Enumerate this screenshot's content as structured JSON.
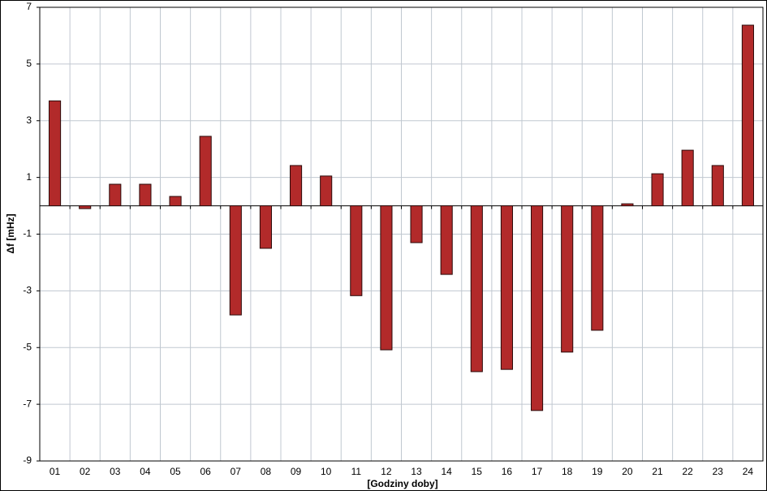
{
  "chart_data": {
    "type": "bar",
    "x_label": "[Godziny doby]",
    "y_label": "Δf [mHz]",
    "categories": [
      "01",
      "02",
      "03",
      "04",
      "05",
      "06",
      "07",
      "08",
      "09",
      "10",
      "11",
      "12",
      "13",
      "14",
      "15",
      "16",
      "17",
      "18",
      "19",
      "20",
      "21",
      "22",
      "23",
      "24"
    ],
    "values": [
      3.7,
      -0.1,
      0.76,
      0.76,
      0.33,
      2.45,
      -3.85,
      -1.5,
      1.42,
      1.05,
      -3.17,
      -5.08,
      -1.3,
      -2.42,
      -5.85,
      -5.77,
      -7.22,
      -5.16,
      -4.39,
      0.07,
      1.13,
      1.96,
      1.42,
      6.37
    ],
    "color": "#b22a2a",
    "ylim": [
      -9,
      7
    ],
    "yticks": [
      -9,
      -7,
      -5,
      -3,
      -1,
      1,
      3,
      5,
      7
    ],
    "grid": true
  }
}
